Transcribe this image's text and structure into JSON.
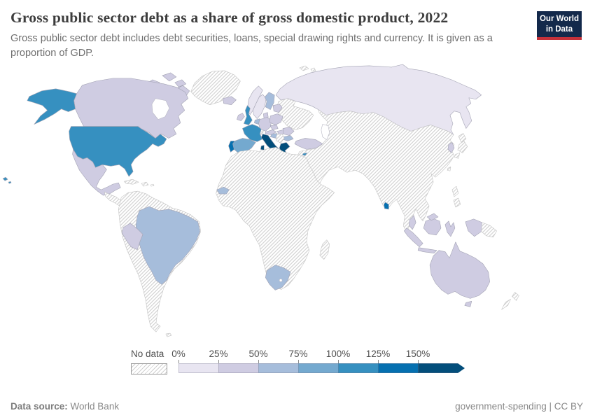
{
  "header": {
    "title": "Gross public sector debt as a share of gross domestic product, 2022",
    "subtitle": "Gross public sector debt includes debt securities, loans, special drawing rights and currency. It is given as a proportion of GDP."
  },
  "logo": {
    "line1": "Our World",
    "line2": "in Data",
    "bg_color": "#13294b",
    "bar_color": "#c5313a"
  },
  "legend": {
    "no_data_label": "No data",
    "ticks": [
      "0%",
      "25%",
      "50%",
      "75%",
      "100%",
      "125%",
      "150%"
    ],
    "colors": [
      "#e8e5f1",
      "#cfcce2",
      "#a6bddb",
      "#74a9cf",
      "#3690c0",
      "#0570b0",
      "#034e7b"
    ]
  },
  "footer": {
    "source_label": "Data source:",
    "source_value": "World Bank",
    "slug": "government-spending",
    "separator": " | ",
    "license": "CC BY"
  },
  "chart_data": {
    "type": "choropleth_map",
    "title": "Gross public sector debt as a share of gross domestic product, 2022",
    "unit": "% of GDP",
    "bins": [
      {
        "band": "b0",
        "range": "0-25%"
      },
      {
        "band": "b1",
        "range": "25-50%"
      },
      {
        "band": "b2",
        "range": "50-75%"
      },
      {
        "band": "b3",
        "range": "75-100%"
      },
      {
        "band": "b4",
        "range": "100-125%"
      },
      {
        "band": "b5",
        "range": "125-150%"
      },
      {
        "band": "b6",
        "range": "150%+"
      }
    ],
    "palette": {
      "b0": "#e8e5f1",
      "b1": "#cfcce2",
      "b2": "#a6bddb",
      "b3": "#74a9cf",
      "b4": "#3690c0",
      "b5": "#0570b0",
      "b6": "#034e7b"
    },
    "no_data_style": "hatched",
    "countries": [
      {
        "id": "usa",
        "name": "United States",
        "band": "b4"
      },
      {
        "id": "canada",
        "name": "Canada",
        "band": "b1"
      },
      {
        "id": "greenland",
        "name": "Greenland",
        "band": "no_data"
      },
      {
        "id": "iceland",
        "name": "Iceland",
        "band": "b1"
      },
      {
        "id": "mexico",
        "name": "Mexico",
        "band": "b1"
      },
      {
        "id": "central-america",
        "name": "Central America",
        "band": "no_data"
      },
      {
        "id": "caribbean",
        "name": "Caribbean",
        "band": "no_data"
      },
      {
        "id": "south-america-other",
        "name": "Other South America",
        "band": "no_data"
      },
      {
        "id": "brazil",
        "name": "Brazil",
        "band": "b2"
      },
      {
        "id": "peru",
        "name": "Peru",
        "band": "b1"
      },
      {
        "id": "falklands",
        "name": "Falkland Islands",
        "band": "no_data"
      },
      {
        "id": "russia",
        "name": "Russia",
        "band": "b0"
      },
      {
        "id": "norway",
        "name": "Norway",
        "band": "b0"
      },
      {
        "id": "sweden",
        "name": "Sweden",
        "band": "b0"
      },
      {
        "id": "finland",
        "name": "Finland",
        "band": "b2"
      },
      {
        "id": "denmark",
        "name": "Denmark",
        "band": "b1"
      },
      {
        "id": "baltics",
        "name": "Baltic states",
        "band": "b1"
      },
      {
        "id": "uk",
        "name": "United Kingdom",
        "band": "b4"
      },
      {
        "id": "ireland",
        "name": "Ireland",
        "band": "b1"
      },
      {
        "id": "france",
        "name": "France",
        "band": "b4"
      },
      {
        "id": "spain",
        "name": "Spain",
        "band": "b3"
      },
      {
        "id": "portugal",
        "name": "Portugal",
        "band": "b5"
      },
      {
        "id": "italy",
        "name": "Italy",
        "band": "b6"
      },
      {
        "id": "greece",
        "name": "Greece",
        "band": "b6"
      },
      {
        "id": "germany",
        "name": "Germany",
        "band": "b1"
      },
      {
        "id": "benelux",
        "name": "Benelux",
        "band": "b2"
      },
      {
        "id": "poland",
        "name": "Poland",
        "band": "b1"
      },
      {
        "id": "czechia",
        "name": "Czechia",
        "band": "b1"
      },
      {
        "id": "austria",
        "name": "Austria",
        "band": "b1"
      },
      {
        "id": "hungary",
        "name": "Hungary",
        "band": "b1"
      },
      {
        "id": "romania",
        "name": "Romania",
        "band": "b1"
      },
      {
        "id": "bulgaria",
        "name": "Bulgaria",
        "band": "b2"
      },
      {
        "id": "croatia",
        "name": "Croatia",
        "band": "b2"
      },
      {
        "id": "balkans",
        "name": "Western Balkans",
        "band": "no_data"
      },
      {
        "id": "switzerland",
        "name": "Switzerland",
        "band": "no_data"
      },
      {
        "id": "ukraine-belarus",
        "name": "Ukraine and Belarus",
        "band": "no_data"
      },
      {
        "id": "turkey",
        "name": "Turkey",
        "band": "b1"
      },
      {
        "id": "cyprus",
        "name": "Cyprus",
        "band": "b4"
      },
      {
        "id": "africa-other",
        "name": "Other Africa",
        "band": "no_data"
      },
      {
        "id": "senegal",
        "name": "Senegal",
        "band": "b2"
      },
      {
        "id": "south-africa",
        "name": "South Africa",
        "band": "b2"
      },
      {
        "id": "madagascar",
        "name": "Madagascar",
        "band": "no_data"
      },
      {
        "id": "asia-other",
        "name": "Other Asia",
        "band": "no_data"
      },
      {
        "id": "south-korea",
        "name": "South Korea",
        "band": "b1"
      },
      {
        "id": "japan",
        "name": "Japan",
        "band": "no_data"
      },
      {
        "id": "taiwan",
        "name": "Taiwan",
        "band": "no_data"
      },
      {
        "id": "philippines",
        "name": "Philippines",
        "band": "no_data"
      },
      {
        "id": "sri-lanka",
        "name": "Sri Lanka",
        "band": "b5"
      },
      {
        "id": "malaysia",
        "name": "Malaysia",
        "band": "b1"
      },
      {
        "id": "indonesia",
        "name": "Indonesia",
        "band": "b1"
      },
      {
        "id": "png",
        "name": "Papua New Guinea",
        "band": "no_data"
      },
      {
        "id": "australia",
        "name": "Australia",
        "band": "b1"
      },
      {
        "id": "new-zealand",
        "name": "New Zealand",
        "band": "no_data"
      },
      {
        "id": "svalbard",
        "name": "Svalbard",
        "band": "no_data"
      }
    ]
  }
}
